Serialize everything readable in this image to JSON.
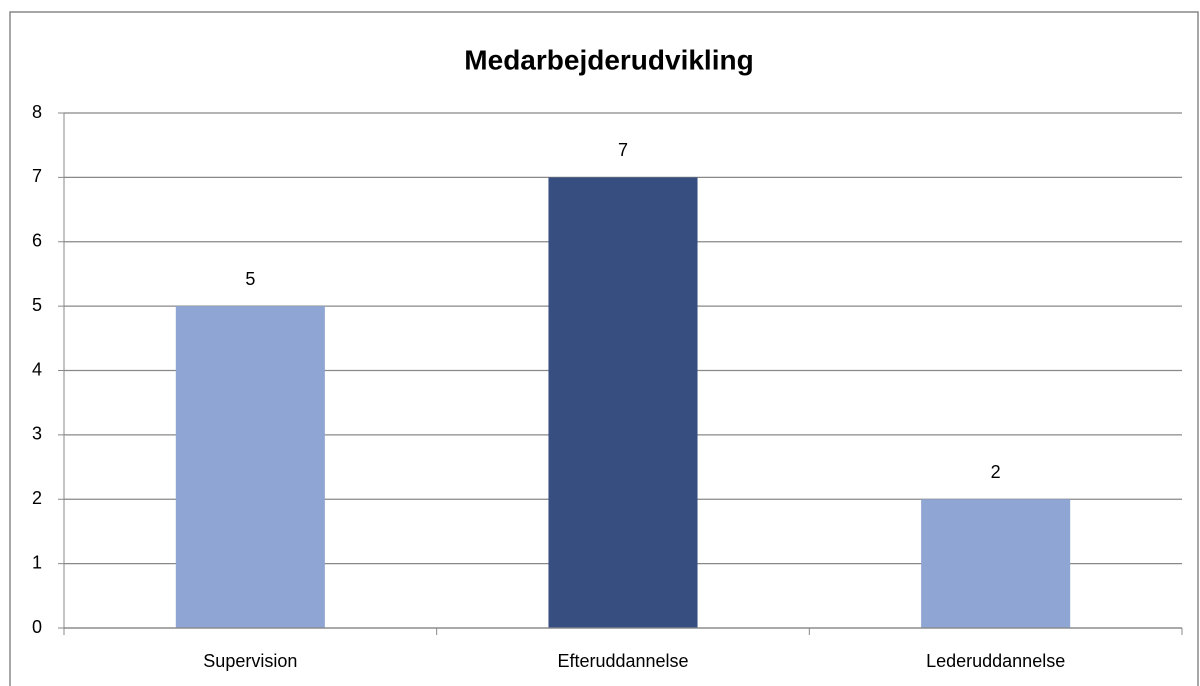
{
  "chart_data": {
    "type": "bar",
    "title": "Medarbejderudvikling",
    "categories": [
      "Supervision",
      "Efteruddannelse",
      "Lederuddannelse"
    ],
    "values": [
      5,
      7,
      2
    ],
    "colors": [
      "#8fa5d3",
      "#374e80",
      "#8fa5d3"
    ],
    "ylim": [
      0,
      8
    ],
    "yticks": [
      0,
      1,
      2,
      3,
      4,
      5,
      6,
      7,
      8
    ],
    "grid": true
  }
}
